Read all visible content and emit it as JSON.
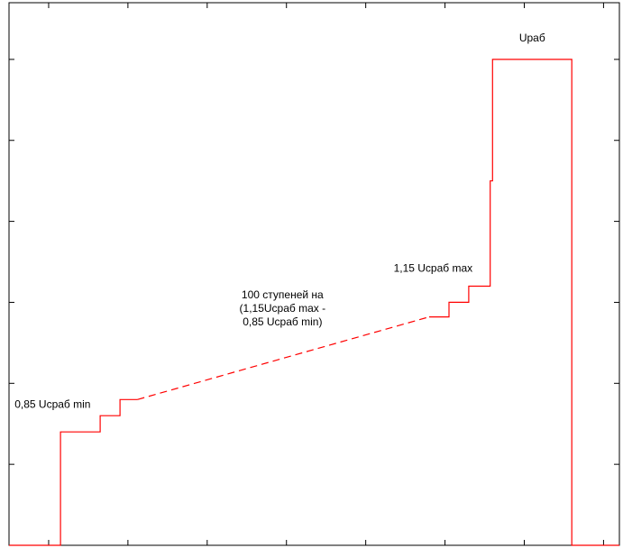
{
  "chart_data": {
    "type": "line",
    "title": "",
    "xlabel": "",
    "ylabel": "",
    "xlim": [
      0,
      7.7
    ],
    "ylim": [
      0,
      6.7
    ],
    "x_ticks": [
      0.5,
      1.5,
      2.5,
      3.5,
      4.5,
      5.5,
      6.5,
      7.5
    ],
    "y_ticks": [
      1,
      2,
      3,
      4,
      5,
      6
    ],
    "grid": false,
    "legend": "none",
    "colors": {
      "line": "#ff0000",
      "frame": "#000000",
      "background": "#ffffff"
    },
    "series": [
      {
        "style": "solid",
        "x": [
          0,
          0.65,
          0.65,
          1.15,
          1.15,
          1.4,
          1.4,
          1.62
        ],
        "y": [
          0,
          0,
          1.4,
          1.4,
          1.6,
          1.6,
          1.8,
          1.8
        ]
      },
      {
        "style": "dashed",
        "x": [
          1.62,
          5.3
        ],
        "y": [
          1.8,
          2.82
        ]
      },
      {
        "style": "solid",
        "x": [
          5.3,
          5.55,
          5.55,
          5.8,
          5.8,
          6.07,
          6.07,
          6.1,
          6.1,
          7.1,
          7.1,
          7.7
        ],
        "y": [
          2.82,
          2.82,
          3.0,
          3.0,
          3.2,
          3.2,
          4.5,
          4.5,
          6.0,
          6.0,
          0,
          0
        ]
      }
    ],
    "annotations": [
      {
        "id": "urab",
        "lines": [
          "Uраб"
        ],
        "x": 6.6,
        "y": 6.22
      },
      {
        "id": "max",
        "lines": [
          "1,15 Ucраб max"
        ],
        "x": 5.35,
        "y": 3.38
      },
      {
        "id": "steps",
        "lines": [
          "100 ступеней на",
          "(1,15Ucраб max -",
          "0,85 Ucраб min)"
        ],
        "x": 3.45,
        "y": 3.05
      },
      {
        "id": "min",
        "lines": [
          "0,85 Ucраб min"
        ],
        "x": 0.55,
        "y": 1.7
      }
    ]
  }
}
